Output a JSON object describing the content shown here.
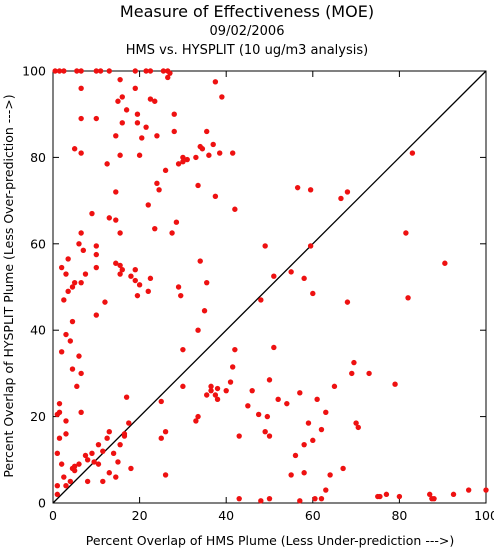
{
  "chart_data": {
    "type": "scatter",
    "title": "Measure of Effectiveness (MOE)",
    "date": "09/02/2006",
    "subtitle": "HMS vs. HYSPLIT  (10 ug/m3 analysis)",
    "xlabel": "Percent Overlap of HMS Plume (Less Under-prediction --->)",
    "ylabel": "Percent Overlap of HYSPLIT Plume (Less Over-prediction --->)",
    "xlim": [
      0,
      100
    ],
    "ylim": [
      0,
      100
    ],
    "xticks": [
      "0",
      "20",
      "40",
      "60",
      "80",
      "100"
    ],
    "yticks": [
      "0",
      "20",
      "40",
      "60",
      "80",
      "100"
    ],
    "reference_line": "1:1 diagonal",
    "marker_color": "#ee1111",
    "points": [
      [
        0.5,
        100
      ],
      [
        1.5,
        100
      ],
      [
        2.5,
        100
      ],
      [
        5.5,
        100
      ],
      [
        6.5,
        100
      ],
      [
        10,
        100
      ],
      [
        11,
        100
      ],
      [
        13,
        100
      ],
      [
        19,
        100
      ],
      [
        21.5,
        100
      ],
      [
        22.5,
        100
      ],
      [
        25.5,
        100
      ],
      [
        26.5,
        100
      ],
      [
        27,
        99.5
      ],
      [
        6.5,
        96
      ],
      [
        15.5,
        98
      ],
      [
        19,
        96
      ],
      [
        23.5,
        93
      ],
      [
        26.5,
        98.5
      ],
      [
        37.5,
        97.5
      ],
      [
        39,
        94
      ],
      [
        15,
        93
      ],
      [
        16,
        94
      ],
      [
        17,
        91
      ],
      [
        19.5,
        90
      ],
      [
        10,
        89
      ],
      [
        6.5,
        89
      ],
      [
        28,
        90
      ],
      [
        22.5,
        93.5
      ],
      [
        21.5,
        87
      ],
      [
        16,
        88
      ],
      [
        14.5,
        85
      ],
      [
        19.5,
        88
      ],
      [
        24,
        85
      ],
      [
        28,
        86
      ],
      [
        35.5,
        86
      ],
      [
        5,
        82
      ],
      [
        6.5,
        81
      ],
      [
        12.5,
        78.5
      ],
      [
        15.5,
        80.5
      ],
      [
        20.5,
        84.5
      ],
      [
        20,
        80.5
      ],
      [
        29,
        78.5
      ],
      [
        30,
        79
      ],
      [
        30,
        80
      ],
      [
        31,
        79.5
      ],
      [
        33,
        80
      ],
      [
        34,
        82.5
      ],
      [
        34.5,
        82
      ],
      [
        36,
        80.5
      ],
      [
        37,
        83
      ],
      [
        38.5,
        81
      ],
      [
        41.5,
        81
      ],
      [
        83,
        81
      ],
      [
        24,
        74
      ],
      [
        24.5,
        72.5
      ],
      [
        26,
        77
      ],
      [
        33.5,
        73.5
      ],
      [
        37.5,
        71
      ],
      [
        14.5,
        72
      ],
      [
        13,
        66
      ],
      [
        9,
        67
      ],
      [
        22,
        69
      ],
      [
        42,
        68
      ],
      [
        56.5,
        73
      ],
      [
        59.5,
        72.5
      ],
      [
        66.5,
        70.5
      ],
      [
        68,
        72
      ],
      [
        14.5,
        65.5
      ],
      [
        6.5,
        62.5
      ],
      [
        6,
        60
      ],
      [
        7,
        58.5
      ],
      [
        10,
        59.5
      ],
      [
        10,
        57.5
      ],
      [
        15.5,
        62.5
      ],
      [
        23.5,
        63.5
      ],
      [
        28.5,
        65
      ],
      [
        27.5,
        62.5
      ],
      [
        81.5,
        62.5
      ],
      [
        2,
        54.5
      ],
      [
        3.5,
        56.5
      ],
      [
        3,
        53
      ],
      [
        5,
        51
      ],
      [
        7.5,
        53
      ],
      [
        10,
        54.5
      ],
      [
        14.5,
        55.5
      ],
      [
        15.5,
        55
      ],
      [
        15.5,
        53
      ],
      [
        16,
        54
      ],
      [
        18,
        52.5
      ],
      [
        19,
        54
      ],
      [
        19,
        51.5
      ],
      [
        20,
        50.5
      ],
      [
        22.5,
        52
      ],
      [
        34,
        56
      ],
      [
        35.5,
        51
      ],
      [
        55,
        53.5
      ],
      [
        58,
        52
      ],
      [
        49,
        59.5
      ],
      [
        51,
        52.5
      ],
      [
        59.5,
        59.5
      ],
      [
        90.5,
        55.5
      ],
      [
        2.5,
        47
      ],
      [
        3.5,
        49
      ],
      [
        4.5,
        50
      ],
      [
        6.5,
        51
      ],
      [
        12,
        46.5
      ],
      [
        10,
        43.5
      ],
      [
        19.5,
        48
      ],
      [
        22,
        49
      ],
      [
        29,
        50
      ],
      [
        29.5,
        48
      ],
      [
        35,
        44.5
      ],
      [
        48,
        47
      ],
      [
        60,
        48.5
      ],
      [
        68,
        46.5
      ],
      [
        82,
        47.5
      ],
      [
        4.5,
        42
      ],
      [
        3,
        39
      ],
      [
        4,
        37.5
      ],
      [
        2,
        35
      ],
      [
        6,
        34
      ],
      [
        30,
        35.5
      ],
      [
        33.5,
        40
      ],
      [
        42,
        35.5
      ],
      [
        51,
        36
      ],
      [
        4.5,
        31
      ],
      [
        6.5,
        30
      ],
      [
        5.5,
        27
      ],
      [
        1.5,
        23
      ],
      [
        1,
        20.5
      ],
      [
        1.5,
        21
      ],
      [
        3,
        19
      ],
      [
        6.5,
        21
      ],
      [
        17,
        24.5
      ],
      [
        25,
        23.5
      ],
      [
        30,
        27
      ],
      [
        33.5,
        20
      ],
      [
        35.5,
        25
      ],
      [
        36.5,
        26
      ],
      [
        36.5,
        27
      ],
      [
        37.5,
        25
      ],
      [
        38,
        24
      ],
      [
        38,
        26.5
      ],
      [
        40,
        26
      ],
      [
        41,
        28
      ],
      [
        41.5,
        31.5
      ],
      [
        45,
        22.5
      ],
      [
        46,
        26
      ],
      [
        47.5,
        20.5
      ],
      [
        49.5,
        20
      ],
      [
        50,
        28.5
      ],
      [
        52,
        24
      ],
      [
        54,
        23
      ],
      [
        57,
        25.5
      ],
      [
        61,
        24
      ],
      [
        63,
        21
      ],
      [
        65,
        27
      ],
      [
        69.5,
        32.5
      ],
      [
        69,
        30
      ],
      [
        73,
        30
      ],
      [
        79,
        27.5
      ],
      [
        1.5,
        15
      ],
      [
        3,
        16
      ],
      [
        1,
        11.5
      ],
      [
        2,
        9
      ],
      [
        2.5,
        6
      ],
      [
        5,
        8.5
      ],
      [
        6,
        9
      ],
      [
        7.5,
        11
      ],
      [
        9.5,
        9.5
      ],
      [
        10.5,
        13.5
      ],
      [
        11.5,
        12
      ],
      [
        12.5,
        15
      ],
      [
        13,
        16.5
      ],
      [
        14,
        11.5
      ],
      [
        15.5,
        13.5
      ],
      [
        16.5,
        16
      ],
      [
        16.5,
        15.5
      ],
      [
        17.5,
        18.5
      ],
      [
        15,
        9.5
      ],
      [
        14.5,
        6
      ],
      [
        13,
        7
      ],
      [
        9,
        11.5
      ],
      [
        8,
        10
      ],
      [
        25,
        15
      ],
      [
        26,
        16.5
      ],
      [
        33,
        19
      ],
      [
        43,
        15.5
      ],
      [
        49,
        16.5
      ],
      [
        50,
        15.5
      ],
      [
        56,
        11
      ],
      [
        58,
        13.5
      ],
      [
        59,
        18.5
      ],
      [
        60,
        14.5
      ],
      [
        62,
        17
      ],
      [
        70,
        18.5
      ],
      [
        70.5,
        17.5
      ],
      [
        1,
        4
      ],
      [
        1,
        2
      ],
      [
        3,
        4
      ],
      [
        4,
        5
      ],
      [
        4.5,
        8
      ],
      [
        5,
        7.5
      ],
      [
        8,
        5
      ],
      [
        10.5,
        9
      ],
      [
        11.5,
        5
      ],
      [
        18,
        8
      ],
      [
        26,
        6.5
      ],
      [
        55,
        6.5
      ],
      [
        58,
        7
      ],
      [
        64,
        6.5
      ],
      [
        67,
        8
      ],
      [
        75,
        1.5
      ],
      [
        75.5,
        1.5
      ],
      [
        77,
        2
      ],
      [
        80,
        1.5
      ],
      [
        87,
        2
      ],
      [
        87.5,
        1
      ],
      [
        88,
        1
      ],
      [
        92.5,
        2
      ],
      [
        96,
        3
      ],
      [
        100,
        3
      ],
      [
        43,
        1
      ],
      [
        48,
        0.5
      ],
      [
        50,
        1
      ],
      [
        57,
        0.5
      ],
      [
        60.5,
        1
      ],
      [
        62,
        1
      ],
      [
        63,
        3
      ]
    ]
  }
}
